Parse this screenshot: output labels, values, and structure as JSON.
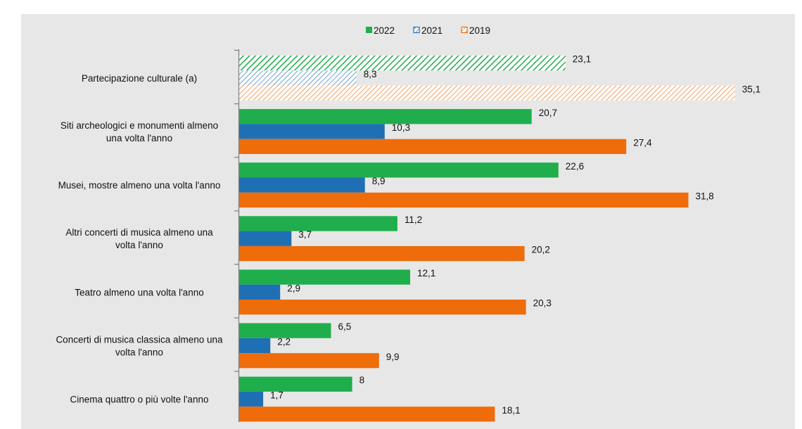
{
  "chart_data": {
    "type": "bar",
    "orientation": "horizontal",
    "categories": [
      "Partecipazione culturale (a)",
      "Siti archeologici e monumenti almeno una volta l'anno",
      "Musei, mostre almeno una volta l'anno",
      "Altri concerti di musica almeno una volta l'anno",
      "Teatro almeno una volta l'anno",
      "Concerti di musica classica almeno una volta l'anno",
      "Cinema  quattro o più volte l'anno"
    ],
    "category_lines": [
      [
        "Partecipazione culturale (a)"
      ],
      [
        "Siti archeologici e monumenti almeno",
        "una volta l'anno"
      ],
      [
        "Musei, mostre almeno una volta l'anno"
      ],
      [
        "Altri concerti di musica almeno una",
        "volta l'anno"
      ],
      [
        "Teatro almeno una volta l'anno"
      ],
      [
        "Concerti di musica classica almeno una",
        "volta l'anno"
      ],
      [
        "Cinema  quattro o più volte l'anno"
      ]
    ],
    "series": [
      {
        "name": "2022",
        "color": "#1fae4b",
        "values": [
          23.1,
          20.7,
          22.6,
          11.2,
          12.1,
          6.5,
          8
        ]
      },
      {
        "name": "2021",
        "color": "#1f6fb5",
        "values": [
          8.3,
          10.3,
          8.9,
          3.7,
          2.9,
          2.2,
          1.7
        ]
      },
      {
        "name": "2019",
        "color": "#ef6c0a",
        "values": [
          35.1,
          27.4,
          31.8,
          20.2,
          20.3,
          9.9,
          18.1
        ]
      }
    ],
    "value_labels": [
      [
        "23,1",
        "20,7",
        "22,6",
        "11,2",
        "12,1",
        "6,5",
        "8"
      ],
      [
        "8,3",
        "10,3",
        "8,9",
        "3,7",
        "2,9",
        "2,2",
        "1,7"
      ],
      [
        "35,1",
        "27,4",
        "31,8",
        "20,2",
        "20,3",
        "9,9",
        "18,1"
      ]
    ],
    "hatched_category_index": 0,
    "legend_position": "top-center",
    "xlim": [
      0,
      36
    ]
  }
}
